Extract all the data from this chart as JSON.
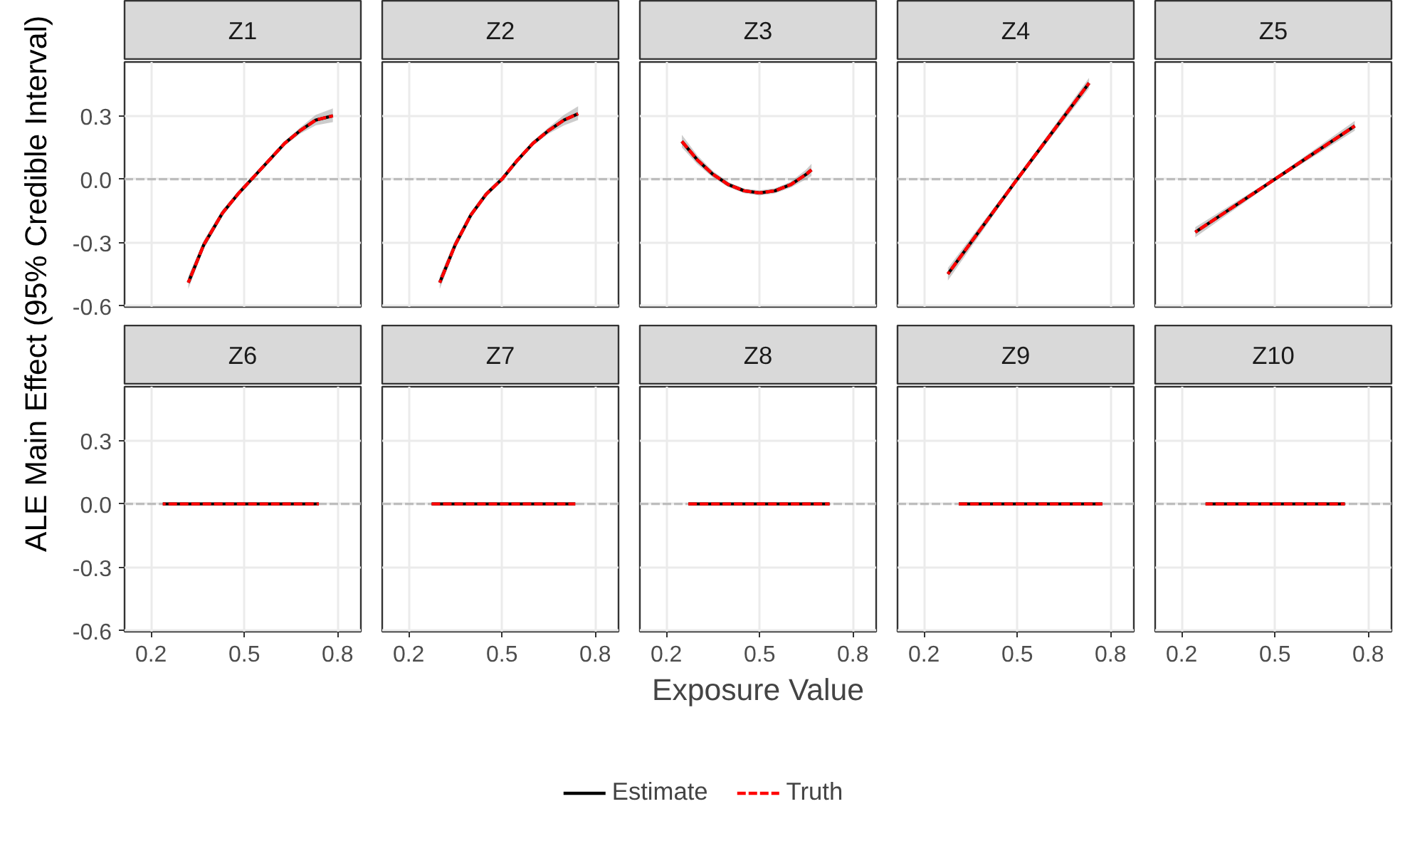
{
  "chart_data": [
    {
      "type": "line",
      "title": "Z1",
      "legend": "bottom",
      "ylabel": "ALE Main Effect (95% Credible Interval)",
      "xlim": [
        0.115,
        0.875
      ],
      "ylim": [
        -0.605,
        0.555
      ],
      "xticks": [
        0.2,
        0.5,
        0.8
      ],
      "yticks": [
        -0.6,
        -0.3,
        {
          "value": 0.0,
          "label": "0.0"
        },
        0.3
      ],
      "grid": true,
      "tick_labels": "y",
      "ref_lines": [
        {
          "axis": "y",
          "value": 0,
          "color": "#bdbdbd",
          "line_style": "dashed"
        }
      ],
      "series": [
        {
          "name": "Estimate",
          "color": "#000000",
          "line_style": "solid",
          "x": [
            0.32,
            0.37,
            0.43,
            0.48,
            0.53,
            0.58,
            0.63,
            0.68,
            0.73,
            0.785
          ],
          "values": [
            -0.49,
            -0.31,
            -0.16,
            -0.07,
            0.01,
            0.09,
            0.17,
            0.23,
            0.28,
            0.3
          ],
          "lower": [
            -0.52,
            -0.33,
            -0.175,
            -0.08,
            0.0,
            0.08,
            0.16,
            0.215,
            0.255,
            0.27
          ],
          "upper": [
            -0.46,
            -0.29,
            -0.145,
            -0.06,
            0.02,
            0.1,
            0.18,
            0.245,
            0.305,
            0.335
          ]
        },
        {
          "name": "Truth",
          "color": "#ff0000",
          "line_style": "dashed",
          "x": [
            0.32,
            0.37,
            0.43,
            0.48,
            0.53,
            0.58,
            0.63,
            0.68,
            0.73,
            0.785
          ],
          "values": [
            -0.49,
            -0.31,
            -0.16,
            -0.07,
            0.01,
            0.09,
            0.17,
            0.23,
            0.28,
            0.3
          ]
        }
      ]
    },
    {
      "type": "line",
      "title": "Z2",
      "xlim": [
        0.115,
        0.875
      ],
      "ylim": [
        -0.605,
        0.555
      ],
      "xticks": [
        0.2,
        0.5,
        0.8
      ],
      "yticks": [
        -0.6,
        -0.3,
        0.0,
        0.3
      ],
      "grid": true,
      "tick_labels": false,
      "ref_lines": [
        {
          "axis": "y",
          "value": 0,
          "color": "#bdbdbd",
          "line_style": "dashed"
        }
      ],
      "series": [
        {
          "color": "#000000",
          "line_style": "solid",
          "x": [
            0.3,
            0.35,
            0.4,
            0.45,
            0.5,
            0.55,
            0.6,
            0.65,
            0.7,
            0.745
          ],
          "values": [
            -0.49,
            -0.31,
            -0.17,
            -0.07,
            0.0,
            0.09,
            0.17,
            0.23,
            0.28,
            0.31
          ],
          "lower": [
            -0.52,
            -0.33,
            -0.185,
            -0.08,
            -0.01,
            0.08,
            0.16,
            0.215,
            0.255,
            0.28
          ],
          "upper": [
            -0.46,
            -0.29,
            -0.155,
            -0.06,
            0.01,
            0.1,
            0.18,
            0.245,
            0.305,
            0.345
          ]
        },
        {
          "color": "#ff0000",
          "line_style": "dashed",
          "x": [
            0.3,
            0.35,
            0.4,
            0.45,
            0.5,
            0.55,
            0.6,
            0.65,
            0.7,
            0.745
          ],
          "values": [
            -0.49,
            -0.31,
            -0.17,
            -0.07,
            0.0,
            0.09,
            0.17,
            0.23,
            0.28,
            0.31
          ]
        }
      ]
    },
    {
      "type": "line",
      "title": "Z3",
      "xlim": [
        0.115,
        0.875
      ],
      "ylim": [
        -0.605,
        0.555
      ],
      "xticks": [
        0.2,
        0.5,
        0.8
      ],
      "yticks": [
        -0.6,
        -0.3,
        0.0,
        0.3
      ],
      "grid": true,
      "tick_labels": false,
      "ref_lines": [
        {
          "axis": "y",
          "value": 0,
          "color": "#bdbdbd",
          "line_style": "dashed"
        }
      ],
      "series": [
        {
          "color": "#000000",
          "line_style": "solid",
          "x": [
            0.25,
            0.3,
            0.35,
            0.4,
            0.45,
            0.5,
            0.55,
            0.6,
            0.65,
            0.667
          ],
          "values": [
            0.179,
            0.091,
            0.023,
            -0.026,
            -0.055,
            -0.065,
            -0.055,
            -0.026,
            0.023,
            0.044
          ],
          "lower": [
            0.15,
            0.07,
            0.008,
            -0.038,
            -0.066,
            -0.077,
            -0.067,
            -0.04,
            0.0,
            0.015
          ],
          "upper": [
            0.21,
            0.112,
            0.038,
            -0.014,
            -0.044,
            -0.053,
            -0.043,
            -0.012,
            0.046,
            0.073
          ]
        },
        {
          "color": "#ff0000",
          "line_style": "dashed",
          "x": [
            0.25,
            0.3,
            0.35,
            0.4,
            0.45,
            0.5,
            0.55,
            0.6,
            0.65,
            0.667
          ],
          "values": [
            0.179,
            0.091,
            0.023,
            -0.026,
            -0.055,
            -0.065,
            -0.055,
            -0.026,
            0.023,
            0.044
          ]
        }
      ]
    },
    {
      "type": "line",
      "title": "Z4",
      "xlim": [
        0.115,
        0.875
      ],
      "ylim": [
        -0.605,
        0.555
      ],
      "xticks": [
        0.2,
        0.5,
        0.8
      ],
      "yticks": [
        -0.6,
        -0.3,
        0.0,
        0.3
      ],
      "grid": true,
      "tick_labels": false,
      "ref_lines": [
        {
          "axis": "y",
          "value": 0,
          "color": "#bdbdbd",
          "line_style": "dashed"
        }
      ],
      "series": [
        {
          "color": "#000000",
          "line_style": "solid",
          "x": [
            0.277,
            0.5,
            0.731
          ],
          "values": [
            -0.449,
            0.0,
            0.455
          ],
          "lower": [
            -0.48,
            -0.01,
            0.43
          ],
          "upper": [
            -0.42,
            0.01,
            0.48
          ]
        },
        {
          "color": "#ff0000",
          "line_style": "dashed",
          "x": [
            0.277,
            0.5,
            0.731
          ],
          "values": [
            -0.449,
            0.0,
            0.455
          ]
        }
      ]
    },
    {
      "type": "line",
      "title": "Z5",
      "xlim": [
        0.115,
        0.875
      ],
      "ylim": [
        -0.605,
        0.555
      ],
      "xticks": [
        0.2,
        0.5,
        0.8
      ],
      "yticks": [
        -0.6,
        -0.3,
        0.0,
        0.3
      ],
      "grid": true,
      "tick_labels": false,
      "ref_lines": [
        {
          "axis": "y",
          "value": 0,
          "color": "#bdbdbd",
          "line_style": "dashed"
        }
      ],
      "series": [
        {
          "color": "#000000",
          "line_style": "solid",
          "x": [
            0.244,
            0.5,
            0.757
          ],
          "values": [
            -0.251,
            0.0,
            0.252
          ],
          "lower": [
            -0.275,
            -0.008,
            0.23
          ],
          "upper": [
            -0.227,
            0.008,
            0.276
          ]
        },
        {
          "color": "#ff0000",
          "line_style": "dashed",
          "x": [
            0.244,
            0.5,
            0.757
          ],
          "values": [
            -0.251,
            0.0,
            0.252
          ]
        }
      ]
    },
    {
      "type": "line",
      "title": "Z6",
      "xlim": [
        0.115,
        0.875
      ],
      "ylim": [
        -0.605,
        0.555
      ],
      "xticks": [
        0.2,
        0.5,
        0.8
      ],
      "yticks": [
        -0.6,
        -0.3,
        {
          "value": 0.0,
          "label": "0.0"
        },
        0.3
      ],
      "grid": true,
      "ref_lines": [
        {
          "axis": "y",
          "value": 0,
          "color": "#bdbdbd",
          "line_style": "dashed"
        }
      ],
      "series": [
        {
          "color": "#000000",
          "line_style": "solid",
          "x": [
            0.238,
            0.74
          ],
          "values": [
            0.0,
            0.0
          ]
        },
        {
          "color": "#ff0000",
          "line_style": "dashed",
          "x": [
            0.238,
            0.74
          ],
          "values": [
            0.0,
            0.0
          ]
        }
      ]
    },
    {
      "type": "line",
      "title": "Z7",
      "xlim": [
        0.115,
        0.875
      ],
      "ylim": [
        -0.605,
        0.555
      ],
      "xticks": [
        0.2,
        0.5,
        0.8
      ],
      "yticks": [
        -0.6,
        -0.3,
        0.0,
        0.3
      ],
      "grid": true,
      "tick_labels": "x",
      "ref_lines": [
        {
          "axis": "y",
          "value": 0,
          "color": "#bdbdbd",
          "line_style": "dashed"
        }
      ],
      "series": [
        {
          "color": "#000000",
          "line_style": "solid",
          "x": [
            0.274,
            0.736
          ],
          "values": [
            0.0,
            0.0
          ]
        },
        {
          "color": "#ff0000",
          "line_style": "dashed",
          "x": [
            0.274,
            0.736
          ],
          "values": [
            0.0,
            0.0
          ]
        }
      ]
    },
    {
      "type": "line",
      "title": "Z8",
      "xlabel": "Exposure Value",
      "xlim": [
        0.115,
        0.875
      ],
      "ylim": [
        -0.605,
        0.555
      ],
      "xticks": [
        0.2,
        0.5,
        0.8
      ],
      "yticks": [
        -0.6,
        -0.3,
        0.0,
        0.3
      ],
      "grid": true,
      "tick_labels": "x",
      "ref_lines": [
        {
          "axis": "y",
          "value": 0,
          "color": "#bdbdbd",
          "line_style": "dashed"
        }
      ],
      "series": [
        {
          "color": "#000000",
          "line_style": "solid",
          "x": [
            0.271,
            0.725
          ],
          "values": [
            0.0,
            0.0
          ]
        },
        {
          "color": "#ff0000",
          "line_style": "dashed",
          "x": [
            0.271,
            0.725
          ],
          "values": [
            0.0,
            0.0
          ]
        }
      ]
    },
    {
      "type": "line",
      "title": "Z9",
      "xlim": [
        0.115,
        0.875
      ],
      "ylim": [
        -0.605,
        0.555
      ],
      "xticks": [
        0.2,
        0.5,
        0.8
      ],
      "yticks": [
        -0.6,
        -0.3,
        0.0,
        0.3
      ],
      "grid": true,
      "tick_labels": "x",
      "ref_lines": [
        {
          "axis": "y",
          "value": 0,
          "color": "#bdbdbd",
          "line_style": "dashed"
        }
      ],
      "series": [
        {
          "color": "#000000",
          "line_style": "solid",
          "x": [
            0.312,
            0.774
          ],
          "values": [
            0.0,
            0.0
          ]
        },
        {
          "color": "#ff0000",
          "line_style": "dashed",
          "x": [
            0.312,
            0.774
          ],
          "values": [
            0.0,
            0.0
          ]
        }
      ]
    },
    {
      "type": "line",
      "title": "Z10",
      "xlim": [
        0.115,
        0.875
      ],
      "ylim": [
        -0.605,
        0.555
      ],
      "xticks": [
        0.2,
        0.5,
        0.8
      ],
      "yticks": [
        -0.6,
        -0.3,
        0.0,
        0.3
      ],
      "grid": true,
      "tick_labels": "x",
      "ref_lines": [
        {
          "axis": "y",
          "value": 0,
          "color": "#bdbdbd",
          "line_style": "dashed"
        }
      ],
      "series": [
        {
          "color": "#000000",
          "line_style": "solid",
          "x": [
            0.277,
            0.725
          ],
          "values": [
            0.0,
            0.0
          ]
        },
        {
          "color": "#ff0000",
          "line_style": "dashed",
          "x": [
            0.277,
            0.725
          ],
          "values": [
            0.0,
            0.0
          ]
        }
      ]
    }
  ]
}
